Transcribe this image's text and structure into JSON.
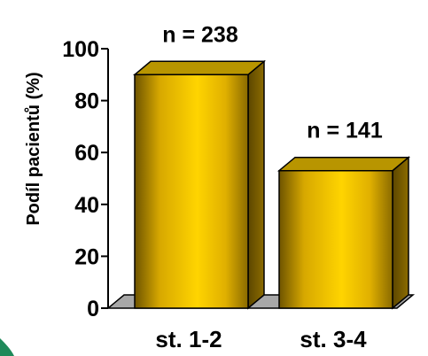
{
  "chart_data": {
    "type": "bar",
    "categories": [
      "st. 1-2",
      "st. 3-4"
    ],
    "values": [
      90,
      53
    ],
    "data_labels": [
      "n = 238",
      "n = 141"
    ],
    "ylabel": "Podíl pacientů (%)",
    "ylim": [
      0,
      100
    ],
    "yticks": [
      "0",
      "20",
      "40",
      "60",
      "80",
      "100"
    ],
    "bar_style": "3d",
    "grid": false,
    "legend": "none"
  },
  "colors": {
    "bar_light": "#ffd200",
    "bar_dark": "#7a5e00",
    "bar_top": "#b89500",
    "bar_outline": "#000000",
    "floor": "#a8a8a8",
    "corner_accent": "#1f8a5a"
  }
}
